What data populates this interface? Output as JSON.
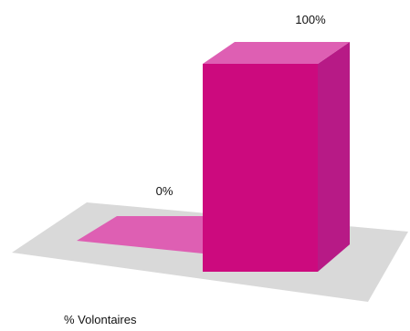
{
  "chart_data": {
    "type": "bar",
    "categories": [
      "",
      ""
    ],
    "values": [
      0,
      100
    ],
    "value_labels": [
      "0%",
      "100%"
    ],
    "title": "",
    "xlabel": "% Volontaires",
    "ylabel": "",
    "ylim": [
      0,
      100
    ],
    "grid": false,
    "legend": "none",
    "style": "3d",
    "colors": {
      "front": "#cc0a7e",
      "top": "#de5fb3",
      "side": "#b71a86",
      "floor": "#d9d9d9"
    }
  }
}
